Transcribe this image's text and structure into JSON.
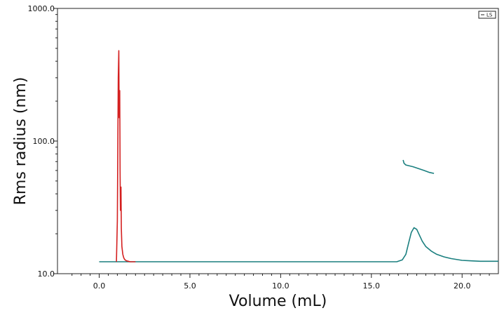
{
  "chart_data": {
    "type": "line",
    "title": "",
    "xlabel": "Volume (mL)",
    "ylabel": "Rms radius (nm)",
    "xlim": [
      -2.3,
      22.0
    ],
    "ylim": [
      10.0,
      1000.0
    ],
    "yscale": "log",
    "x_ticks": [
      {
        "value": 0.0,
        "label": "0.0"
      },
      {
        "value": 5.0,
        "label": "5.0"
      },
      {
        "value": 10.0,
        "label": "10.0"
      },
      {
        "value": 15.0,
        "label": "15.0"
      },
      {
        "value": 20.0,
        "label": "20.0"
      }
    ],
    "x_minor_ticks": [
      -1.5,
      -1,
      -0.5,
      0.5,
      1,
      1.5,
      2,
      2.5,
      3,
      3.5,
      4,
      4.5,
      5.5,
      6,
      6.5,
      7,
      7.5,
      8,
      8.5,
      9,
      9.5,
      10.5,
      11,
      11.5,
      12,
      12.5,
      13,
      13.5,
      14,
      14.5,
      15.5,
      16,
      16.5,
      17,
      17.5,
      18,
      18.5,
      19,
      19.5,
      20.5,
      21,
      21.5
    ],
    "y_ticks": [
      {
        "value": 10.0,
        "label": "10.0"
      },
      {
        "value": 100.0,
        "label": "100.0"
      },
      {
        "value": 1000.0,
        "label": "1000.0"
      }
    ],
    "y_minor_ticks": [
      20,
      30,
      40,
      50,
      60,
      70,
      80,
      90,
      200,
      300,
      400,
      500,
      600,
      700,
      800,
      900
    ],
    "legend": {
      "position": "top-right",
      "entries": [
        "LS"
      ]
    },
    "grid": false,
    "series": [
      {
        "color": "#1a7f7f",
        "role": "LS baseline / signal trace",
        "x": [
          0.0,
          2.0,
          5.0,
          10.0,
          15.0,
          16.4,
          16.7,
          16.9,
          17.05,
          17.2,
          17.35,
          17.5,
          17.65,
          17.8,
          18.0,
          18.3,
          18.6,
          19.0,
          19.4,
          20.0,
          20.5,
          21.0,
          22.0
        ],
        "y": [
          12.3,
          12.3,
          12.3,
          12.3,
          12.3,
          12.3,
          12.7,
          14.0,
          17.0,
          20.5,
          22.2,
          21.6,
          19.5,
          17.6,
          16.0,
          14.8,
          14.0,
          13.4,
          13.0,
          12.6,
          12.5,
          12.4,
          12.4
        ]
      },
      {
        "color": "#1a7f7f",
        "role": "Rms radius (nm)",
        "x": [
          16.75,
          16.8,
          16.9,
          17.1,
          17.3,
          17.6,
          17.9,
          18.2,
          18.45
        ],
        "y": [
          72,
          68,
          66,
          65,
          64,
          62,
          60,
          58,
          57
        ]
      },
      {
        "color": "#d42020",
        "role": "void peak",
        "x": [
          0.95,
          1.0,
          1.05,
          1.08,
          1.1,
          1.13,
          1.15,
          1.17,
          1.2,
          1.22,
          1.25,
          1.3,
          1.35,
          1.4,
          1.5,
          1.6,
          1.7,
          1.8,
          1.9,
          2.0
        ],
        "y": [
          12.3,
          25,
          300,
          480,
          150,
          240,
          60,
          30,
          45,
          22,
          16,
          14,
          13.2,
          12.8,
          12.5,
          12.4,
          12.3,
          12.3,
          12.3,
          12.3
        ]
      }
    ]
  }
}
